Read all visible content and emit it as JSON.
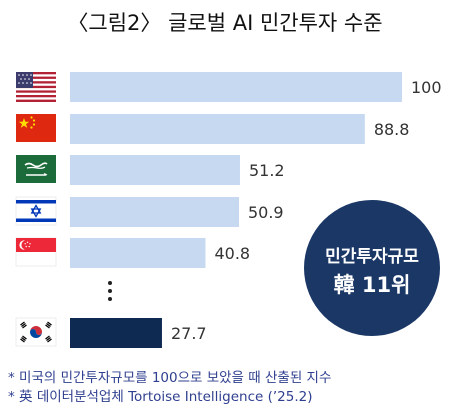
{
  "chart_data": {
    "type": "bar",
    "orientation": "horizontal",
    "title": "〈그림2〉 글로벌 AI 민간투자 수준",
    "categories": [
      "미국",
      "중국",
      "사우디아라비아",
      "이스라엘",
      "싱가포르",
      "한국"
    ],
    "values": [
      100,
      88.8,
      51.2,
      50.9,
      40.8,
      27.7
    ],
    "value_labels": [
      "100",
      "88.8",
      "51.2",
      "50.9",
      "40.8",
      "27.7"
    ],
    "xlim": [
      0,
      100
    ],
    "grid": false,
    "legend": "none"
  },
  "colors": {
    "bar": "#c6d9f1",
    "highlight_bar": "#0f2a52",
    "badge": "#1a3766",
    "note": "#2f3f8f"
  },
  "icons": [
    "flag-usa",
    "flag-china",
    "flag-saudi-arabia",
    "flag-israel",
    "flag-singapore",
    "flag-south-korea",
    "vertical-ellipsis"
  ],
  "badge": {
    "line1": "민간투자규모",
    "line2": "韓 11위"
  },
  "notes": [
    "* 미국의 민간투자규모를 100으로 보았을 때 산출된 지수",
    "* 英 데이터분석업체 Tortoise Intelligence (’25.2)"
  ]
}
